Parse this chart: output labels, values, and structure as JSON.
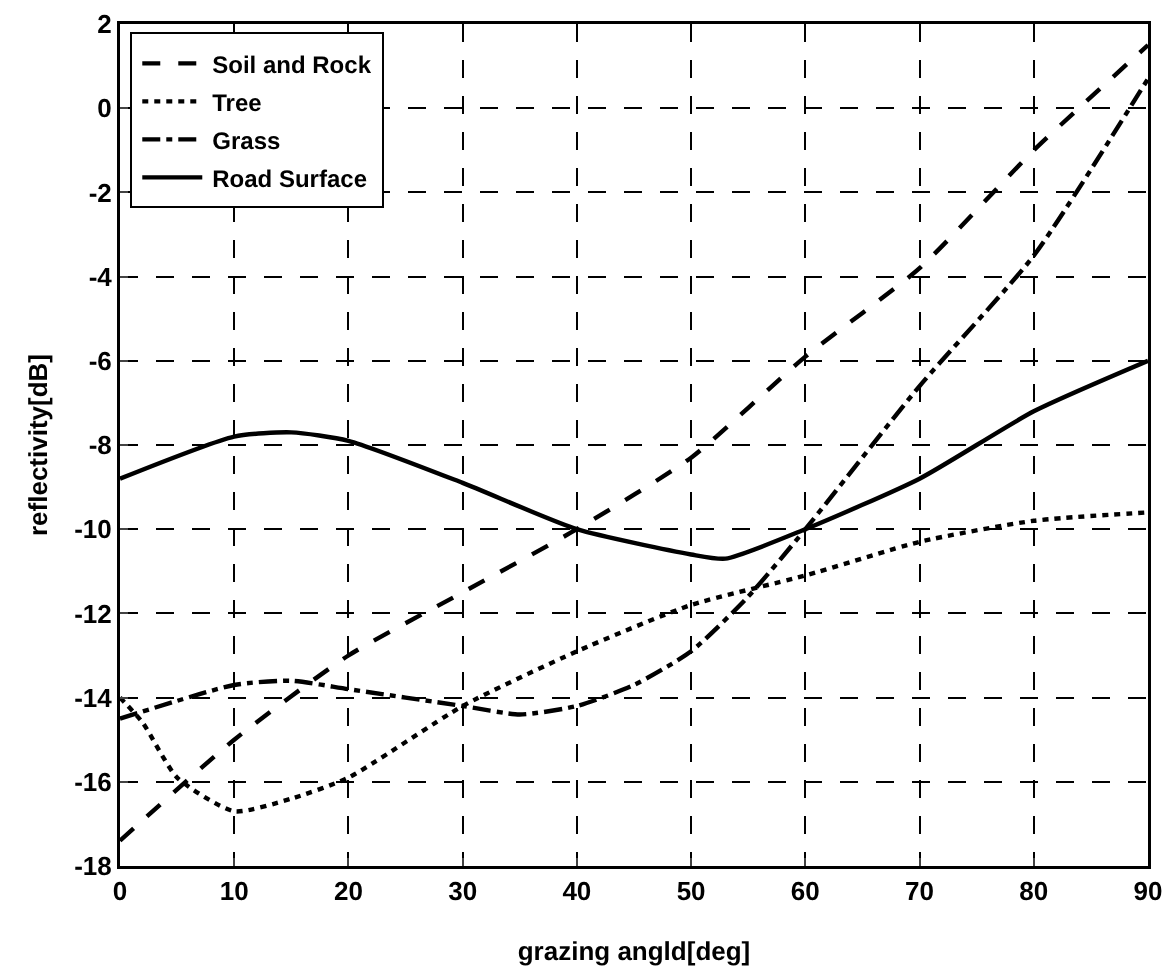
{
  "chart_data": {
    "type": "line",
    "xlabel": "grazing angld[deg]",
    "ylabel": "reflectivity[dB]",
    "xlim": [
      0,
      90
    ],
    "ylim": [
      -18,
      2
    ],
    "xticks": [
      0,
      10,
      20,
      30,
      40,
      50,
      60,
      70,
      80,
      90
    ],
    "yticks": [
      -18,
      -16,
      -14,
      -12,
      -10,
      -8,
      -6,
      -4,
      -2,
      0,
      2
    ],
    "grid": true,
    "legend": "top left",
    "marker": "none",
    "series": [
      {
        "name": "Soil and Rock",
        "color": "#000000",
        "line_style": "dashed",
        "x": [
          0,
          10,
          20,
          30,
          40,
          50,
          60,
          70,
          80,
          90
        ],
        "values": [
          -17.4,
          -15.0,
          -13.0,
          -11.5,
          -10.0,
          -8.3,
          -5.9,
          -3.8,
          -1.0,
          1.5
        ]
      },
      {
        "name": "Tree",
        "color": "#000000",
        "line_style": "dotted",
        "x": [
          0,
          2,
          5,
          10,
          15,
          20,
          30,
          40,
          50,
          60,
          70,
          80,
          90
        ],
        "values": [
          -14.0,
          -14.6,
          -15.9,
          -16.7,
          -16.4,
          -15.9,
          -14.2,
          -12.9,
          -11.8,
          -11.1,
          -10.3,
          -9.8,
          -9.6
        ]
      },
      {
        "name": "Grass",
        "color": "#000000",
        "line_style": "dashdot",
        "x": [
          0,
          10,
          15,
          20,
          30,
          35,
          40,
          45,
          50,
          55,
          60,
          70,
          80,
          90
        ],
        "values": [
          -14.5,
          -13.7,
          -13.6,
          -13.8,
          -14.2,
          -14.4,
          -14.2,
          -13.7,
          -12.9,
          -11.6,
          -10.0,
          -6.6,
          -3.5,
          0.7
        ]
      },
      {
        "name": "Road Surface",
        "color": "#000000",
        "line_style": "solid",
        "x": [
          0,
          10,
          15,
          20,
          30,
          40,
          50,
          53,
          60,
          70,
          80,
          90
        ],
        "values": [
          -8.8,
          -7.8,
          -7.7,
          -7.9,
          -8.9,
          -10.0,
          -10.6,
          -10.7,
          -10.0,
          -8.8,
          -7.2,
          -6.0
        ]
      }
    ]
  }
}
